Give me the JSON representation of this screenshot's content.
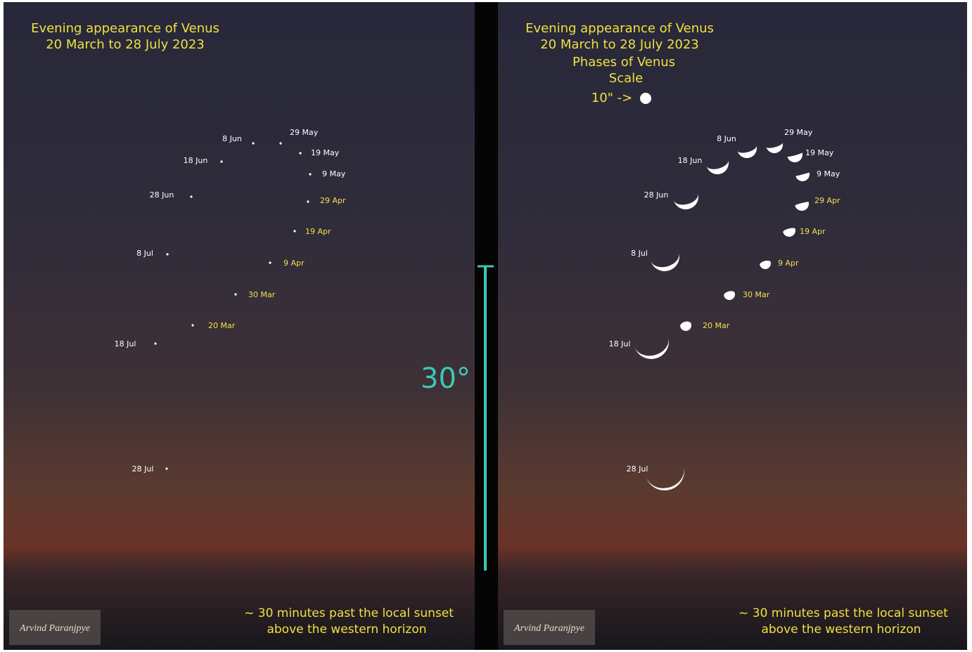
{
  "left_panel": {
    "title": [
      "Evening appearance of Venus",
      "20 March to 28 July 2023"
    ],
    "points": [
      {
        "label": "29 May",
        "color": "#ffffff"
      },
      {
        "label": "8 Jun",
        "color": "#ffffff"
      },
      {
        "label": "19 May",
        "color": "#ffffff"
      },
      {
        "label": "18 Jun",
        "color": "#ffffff"
      },
      {
        "label": "9 May",
        "color": "#ffffff"
      },
      {
        "label": "28 Jun",
        "color": "#ffffff"
      },
      {
        "label": "29 Apr",
        "color": "#f2e24a"
      },
      {
        "label": "19 Apr",
        "color": "#f2e24a"
      },
      {
        "label": "8 Jul",
        "color": "#ffffff"
      },
      {
        "label": "9 Apr",
        "color": "#f2e24a"
      },
      {
        "label": "30 Mar",
        "color": "#f2e24a"
      },
      {
        "label": "20 Mar",
        "color": "#f2e24a"
      },
      {
        "label": "18 Jul",
        "color": "#ffffff"
      },
      {
        "label": "28 Jul",
        "color": "#ffffff"
      }
    ],
    "footer": [
      "~ 30 minutes past the local sunset",
      "above the western horizon"
    ],
    "signature": "Arvind Paranjpye"
  },
  "right_panel": {
    "title": [
      "Evening appearance of Venus",
      "20 March to 28 July 2023",
      "Phases of Venus"
    ],
    "scale": {
      "label": "Scale",
      "text": "10\" ->"
    },
    "points": [
      {
        "label": "29 May",
        "color": "#ffffff"
      },
      {
        "label": "8 Jun",
        "color": "#ffffff"
      },
      {
        "label": "19 May",
        "color": "#ffffff"
      },
      {
        "label": "18 Jun",
        "color": "#ffffff"
      },
      {
        "label": "9 May",
        "color": "#ffffff"
      },
      {
        "label": "28 Jun",
        "color": "#ffffff"
      },
      {
        "label": "29 Apr",
        "color": "#f2e24a"
      },
      {
        "label": "19 Apr",
        "color": "#f2e24a"
      },
      {
        "label": "8 Jul",
        "color": "#ffffff"
      },
      {
        "label": "9 Apr",
        "color": "#f2e24a"
      },
      {
        "label": "30 Mar",
        "color": "#f2e24a"
      },
      {
        "label": "20 Mar",
        "color": "#f2e24a"
      },
      {
        "label": "18 Jul",
        "color": "#ffffff"
      },
      {
        "label": "28 Jul",
        "color": "#ffffff"
      }
    ],
    "footer": [
      "~ 30 minutes past the local sunset",
      "above the western horizon"
    ],
    "signature": "Arvind Paranjpye"
  },
  "scale_bar": {
    "label": "30°"
  }
}
